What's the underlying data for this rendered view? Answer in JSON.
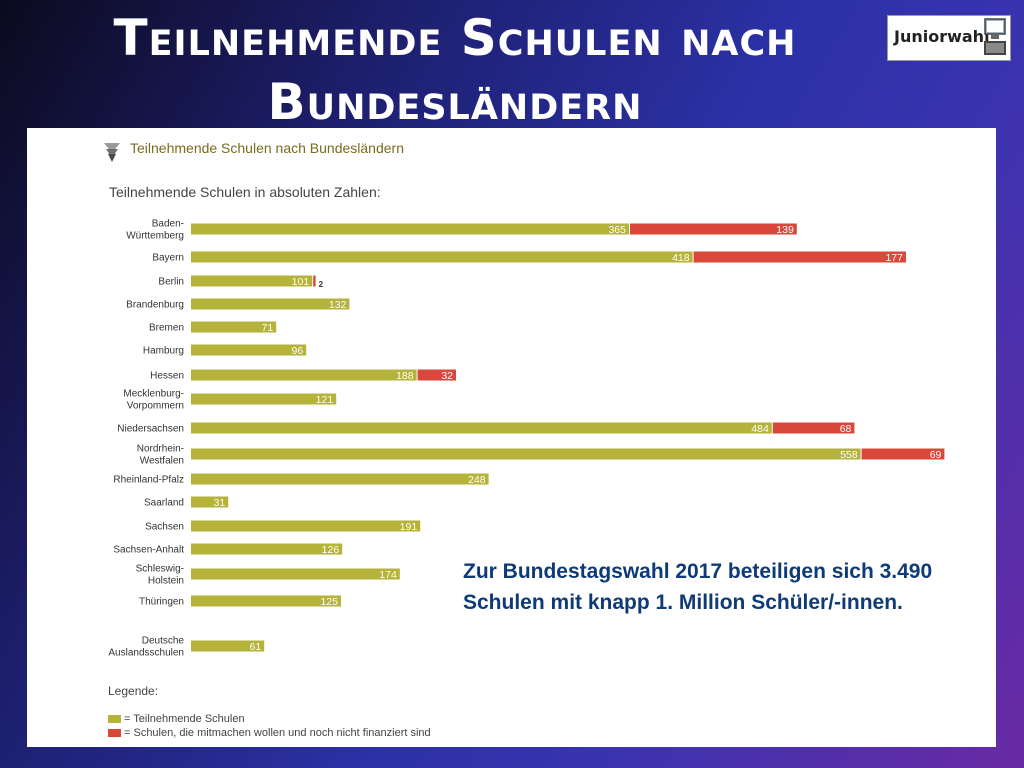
{
  "slide": {
    "title_line1": "Teilnehmende Schulen nach",
    "title_line2": "Bundesländern"
  },
  "logo": {
    "text": "Juniorwahl",
    "icon": "computer-screen-icon"
  },
  "panel": {
    "heading": "Teilnehmende Schulen nach Bundesländern",
    "heading_icon": "triangle-stack-icon",
    "subheading": "Teilnehmende Schulen in absoluten Zahlen:",
    "legend_title": "Legende:",
    "legend": [
      {
        "label": "= Teilnehmende Schulen",
        "color": "#b5b33a"
      },
      {
        "label": "= Schulen, die mitmachen wollen und noch nicht finanziert sind",
        "color": "#d9483b"
      }
    ],
    "note": "Zur Bundestagswahl 2017 beteiligen sich 3.490 Schulen mit knapp 1. Million Schüler/-innen."
  },
  "chart_data": {
    "type": "bar",
    "orientation": "horizontal",
    "stacked": true,
    "title": "Teilnehmende Schulen in absoluten Zahlen:",
    "categories": [
      [
        "Baden-",
        "Württemberg"
      ],
      [
        "Bayern"
      ],
      [
        "Berlin"
      ],
      [
        "Brandenburg"
      ],
      [
        "Bremen"
      ],
      [
        "Hamburg"
      ],
      [
        "Hessen"
      ],
      [
        "Mecklenburg-",
        "Vorpommern"
      ],
      [
        "Niedersachsen"
      ],
      [
        "Nordrhein-",
        "Westfalen"
      ],
      [
        "Rheinland-Pfalz"
      ],
      [
        "Saarland"
      ],
      [
        "Sachsen"
      ],
      [
        "Sachsen-Anhalt"
      ],
      [
        "Schleswig-",
        "Holstein"
      ],
      [
        "Thüringen"
      ],
      [
        "Deutsche",
        "Auslandsschulen"
      ]
    ],
    "series": [
      {
        "name": "Teilnehmende Schulen",
        "color": "#b5b33a",
        "values": [
          365,
          418,
          101,
          132,
          71,
          96,
          188,
          121,
          484,
          558,
          248,
          31,
          191,
          126,
          174,
          125,
          61
        ]
      },
      {
        "name": "Schulen, die mitmachen wollen und noch nicht finanziert sind",
        "color": "#d9483b",
        "values": [
          139,
          177,
          2,
          0,
          0,
          0,
          32,
          0,
          68,
          69,
          0,
          0,
          0,
          0,
          0,
          0,
          0
        ]
      }
    ],
    "grid": false,
    "legend_position": "bottom-left"
  }
}
